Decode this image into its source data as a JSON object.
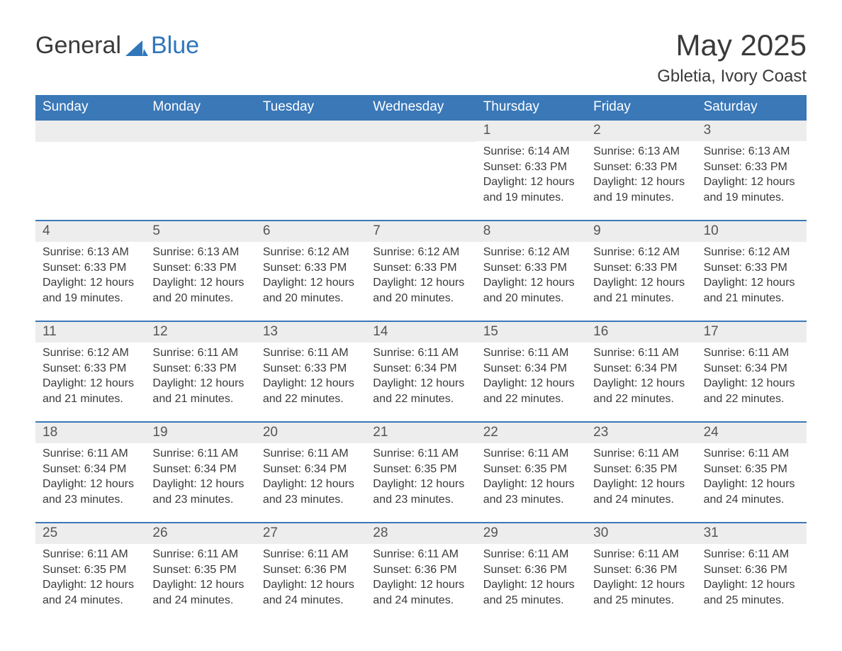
{
  "brand": {
    "word1": "General",
    "word2": "Blue",
    "mark_color": "#2f76bb",
    "text_color": "#3a3a3a"
  },
  "title": "May 2025",
  "location": "Gbletia, Ivory Coast",
  "colors": {
    "header_bg": "#3a78b8",
    "header_text": "#ffffff",
    "band_bg": "#ededed",
    "week_divider": "#3a78b8",
    "body_text": "#3a3a3a",
    "page_bg": "#ffffff"
  },
  "days_of_week": [
    "Sunday",
    "Monday",
    "Tuesday",
    "Wednesday",
    "Thursday",
    "Friday",
    "Saturday"
  ],
  "leading_blanks": 4,
  "days": [
    {
      "n": "1",
      "sunrise": "6:14 AM",
      "sunset": "6:33 PM",
      "dl": "12 hours and 19 minutes."
    },
    {
      "n": "2",
      "sunrise": "6:13 AM",
      "sunset": "6:33 PM",
      "dl": "12 hours and 19 minutes."
    },
    {
      "n": "3",
      "sunrise": "6:13 AM",
      "sunset": "6:33 PM",
      "dl": "12 hours and 19 minutes."
    },
    {
      "n": "4",
      "sunrise": "6:13 AM",
      "sunset": "6:33 PM",
      "dl": "12 hours and 19 minutes."
    },
    {
      "n": "5",
      "sunrise": "6:13 AM",
      "sunset": "6:33 PM",
      "dl": "12 hours and 20 minutes."
    },
    {
      "n": "6",
      "sunrise": "6:12 AM",
      "sunset": "6:33 PM",
      "dl": "12 hours and 20 minutes."
    },
    {
      "n": "7",
      "sunrise": "6:12 AM",
      "sunset": "6:33 PM",
      "dl": "12 hours and 20 minutes."
    },
    {
      "n": "8",
      "sunrise": "6:12 AM",
      "sunset": "6:33 PM",
      "dl": "12 hours and 20 minutes."
    },
    {
      "n": "9",
      "sunrise": "6:12 AM",
      "sunset": "6:33 PM",
      "dl": "12 hours and 21 minutes."
    },
    {
      "n": "10",
      "sunrise": "6:12 AM",
      "sunset": "6:33 PM",
      "dl": "12 hours and 21 minutes."
    },
    {
      "n": "11",
      "sunrise": "6:12 AM",
      "sunset": "6:33 PM",
      "dl": "12 hours and 21 minutes."
    },
    {
      "n": "12",
      "sunrise": "6:11 AM",
      "sunset": "6:33 PM",
      "dl": "12 hours and 21 minutes."
    },
    {
      "n": "13",
      "sunrise": "6:11 AM",
      "sunset": "6:33 PM",
      "dl": "12 hours and 22 minutes."
    },
    {
      "n": "14",
      "sunrise": "6:11 AM",
      "sunset": "6:34 PM",
      "dl": "12 hours and 22 minutes."
    },
    {
      "n": "15",
      "sunrise": "6:11 AM",
      "sunset": "6:34 PM",
      "dl": "12 hours and 22 minutes."
    },
    {
      "n": "16",
      "sunrise": "6:11 AM",
      "sunset": "6:34 PM",
      "dl": "12 hours and 22 minutes."
    },
    {
      "n": "17",
      "sunrise": "6:11 AM",
      "sunset": "6:34 PM",
      "dl": "12 hours and 22 minutes."
    },
    {
      "n": "18",
      "sunrise": "6:11 AM",
      "sunset": "6:34 PM",
      "dl": "12 hours and 23 minutes."
    },
    {
      "n": "19",
      "sunrise": "6:11 AM",
      "sunset": "6:34 PM",
      "dl": "12 hours and 23 minutes."
    },
    {
      "n": "20",
      "sunrise": "6:11 AM",
      "sunset": "6:34 PM",
      "dl": "12 hours and 23 minutes."
    },
    {
      "n": "21",
      "sunrise": "6:11 AM",
      "sunset": "6:35 PM",
      "dl": "12 hours and 23 minutes."
    },
    {
      "n": "22",
      "sunrise": "6:11 AM",
      "sunset": "6:35 PM",
      "dl": "12 hours and 23 minutes."
    },
    {
      "n": "23",
      "sunrise": "6:11 AM",
      "sunset": "6:35 PM",
      "dl": "12 hours and 24 minutes."
    },
    {
      "n": "24",
      "sunrise": "6:11 AM",
      "sunset": "6:35 PM",
      "dl": "12 hours and 24 minutes."
    },
    {
      "n": "25",
      "sunrise": "6:11 AM",
      "sunset": "6:35 PM",
      "dl": "12 hours and 24 minutes."
    },
    {
      "n": "26",
      "sunrise": "6:11 AM",
      "sunset": "6:35 PM",
      "dl": "12 hours and 24 minutes."
    },
    {
      "n": "27",
      "sunrise": "6:11 AM",
      "sunset": "6:36 PM",
      "dl": "12 hours and 24 minutes."
    },
    {
      "n": "28",
      "sunrise": "6:11 AM",
      "sunset": "6:36 PM",
      "dl": "12 hours and 24 minutes."
    },
    {
      "n": "29",
      "sunrise": "6:11 AM",
      "sunset": "6:36 PM",
      "dl": "12 hours and 25 minutes."
    },
    {
      "n": "30",
      "sunrise": "6:11 AM",
      "sunset": "6:36 PM",
      "dl": "12 hours and 25 minutes."
    },
    {
      "n": "31",
      "sunrise": "6:11 AM",
      "sunset": "6:36 PM",
      "dl": "12 hours and 25 minutes."
    }
  ],
  "labels": {
    "sunrise": "Sunrise:",
    "sunset": "Sunset:",
    "daylight": "Daylight:"
  }
}
